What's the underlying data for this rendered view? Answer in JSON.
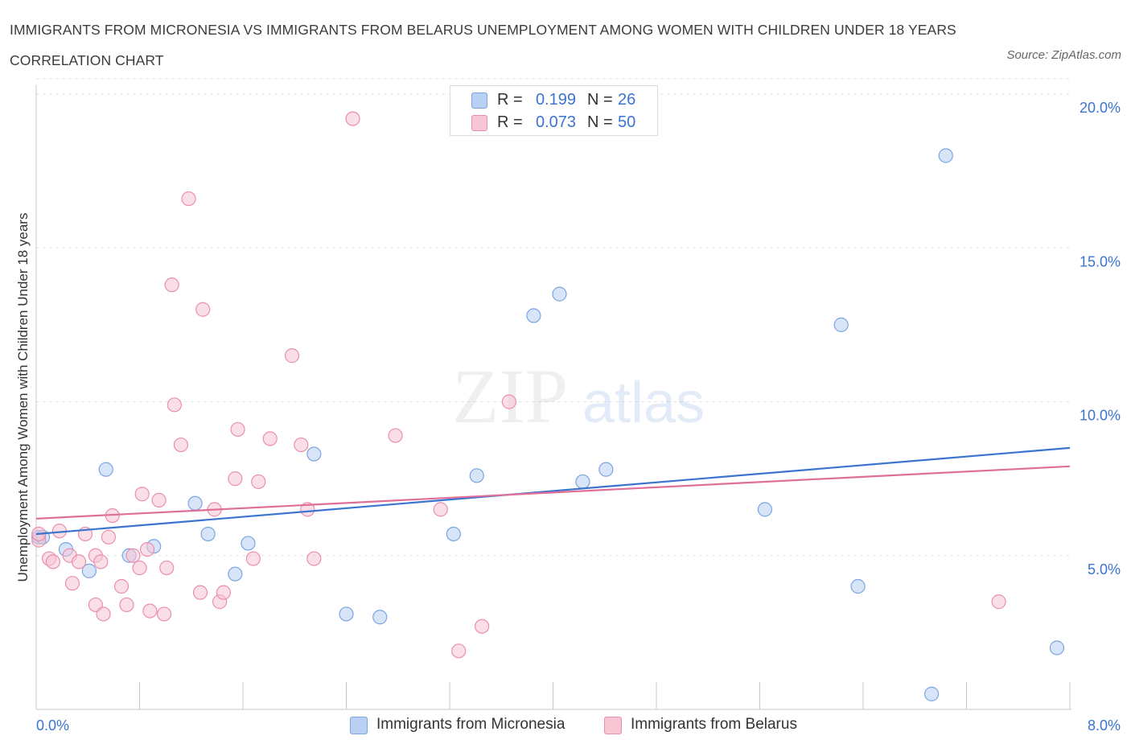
{
  "title": "IMMIGRANTS FROM MICRONESIA VS IMMIGRANTS FROM BELARUS UNEMPLOYMENT AMONG WOMEN WITH CHILDREN UNDER 18 YEARS CORRELATION CHART",
  "source": "Source: ZipAtlas.com",
  "watermark": {
    "zip": "ZIP",
    "atlas": "atlas"
  },
  "legend_top": {
    "r_label": "R =",
    "n_label": "N =",
    "rows": [
      {
        "r": "0.199",
        "n": "26"
      },
      {
        "r": "0.073",
        "n": "50"
      }
    ]
  },
  "colors": {
    "micronesia_fill": "#b8d0f4",
    "micronesia_stroke": "#7ba4e0",
    "micronesia_line": "#3a74d0",
    "belarus_fill": "#f7c5d4",
    "belarus_stroke": "#e98fae",
    "belarus_line": "#e06f98",
    "tick_label": "#3b74d1"
  },
  "chart_data": {
    "type": "scatter",
    "title": "IMMIGRANTS FROM MICRONESIA VS IMMIGRANTS FROM BELARUS UNEMPLOYMENT AMONG WOMEN WITH CHILDREN UNDER 18 YEARS CORRELATION CHART",
    "xlabel": "",
    "ylabel": "Unemployment Among Women with Children Under 18 years",
    "xlim": [
      0,
      8
    ],
    "ylim": [
      0,
      20.5
    ],
    "x_tick_labels": [
      "0.0%",
      "8.0%"
    ],
    "y_ticks": [
      5,
      10,
      15,
      20
    ],
    "y_tick_labels": [
      "5.0%",
      "10.0%",
      "15.0%",
      "20.0%"
    ],
    "grid": true,
    "legend_position": "bottom",
    "series": [
      {
        "name": "Immigrants from Micronesia",
        "trend": {
          "x": [
            0,
            8
          ],
          "y": [
            5.7,
            8.5
          ]
        },
        "points": [
          [
            0.02,
            5.6
          ],
          [
            0.23,
            5.2
          ],
          [
            0.41,
            4.5
          ],
          [
            0.54,
            7.8
          ],
          [
            0.72,
            5.0
          ],
          [
            0.91,
            5.3
          ],
          [
            1.23,
            6.7
          ],
          [
            1.33,
            5.7
          ],
          [
            1.54,
            4.4
          ],
          [
            1.64,
            5.4
          ],
          [
            2.15,
            8.3
          ],
          [
            2.4,
            3.1
          ],
          [
            2.66,
            3.0
          ],
          [
            3.23,
            5.7
          ],
          [
            3.41,
            7.6
          ],
          [
            3.85,
            12.8
          ],
          [
            4.05,
            13.5
          ],
          [
            4.23,
            7.4
          ],
          [
            4.41,
            7.8
          ],
          [
            5.64,
            6.5
          ],
          [
            6.23,
            12.5
          ],
          [
            6.36,
            4.0
          ],
          [
            6.93,
            0.5
          ],
          [
            7.04,
            18.0
          ],
          [
            7.9,
            2.0
          ],
          [
            0.05,
            5.6
          ]
        ]
      },
      {
        "name": "Immigrants from Belarus",
        "trend": {
          "x": [
            0,
            8
          ],
          "y": [
            6.2,
            7.9
          ]
        },
        "points": [
          [
            0.02,
            5.5
          ],
          [
            0.1,
            4.9
          ],
          [
            0.13,
            4.8
          ],
          [
            0.18,
            5.8
          ],
          [
            0.26,
            5.0
          ],
          [
            0.28,
            4.1
          ],
          [
            0.33,
            4.8
          ],
          [
            0.38,
            5.7
          ],
          [
            0.46,
            5.0
          ],
          [
            0.46,
            3.4
          ],
          [
            0.52,
            3.1
          ],
          [
            0.56,
            5.6
          ],
          [
            0.59,
            6.3
          ],
          [
            0.66,
            4.0
          ],
          [
            0.7,
            3.4
          ],
          [
            0.75,
            5.0
          ],
          [
            0.8,
            4.6
          ],
          [
            0.86,
            5.2
          ],
          [
            0.82,
            7.0
          ],
          [
            0.88,
            3.2
          ],
          [
            0.95,
            6.8
          ],
          [
            0.99,
            3.1
          ],
          [
            1.01,
            4.6
          ],
          [
            1.07,
            9.9
          ],
          [
            1.05,
            13.8
          ],
          [
            1.12,
            8.6
          ],
          [
            1.18,
            16.6
          ],
          [
            1.27,
            3.8
          ],
          [
            1.29,
            13.0
          ],
          [
            1.38,
            6.5
          ],
          [
            1.42,
            3.5
          ],
          [
            1.45,
            3.8
          ],
          [
            1.54,
            7.5
          ],
          [
            1.56,
            9.1
          ],
          [
            1.68,
            4.9
          ],
          [
            1.72,
            7.4
          ],
          [
            1.81,
            8.8
          ],
          [
            1.98,
            11.5
          ],
          [
            2.05,
            8.6
          ],
          [
            2.1,
            6.5
          ],
          [
            2.15,
            4.9
          ],
          [
            2.45,
            19.2
          ],
          [
            2.78,
            8.9
          ],
          [
            3.13,
            6.5
          ],
          [
            3.27,
            1.9
          ],
          [
            3.45,
            2.7
          ],
          [
            3.66,
            10.0
          ],
          [
            7.45,
            3.5
          ],
          [
            0.02,
            5.7
          ],
          [
            0.5,
            4.8
          ]
        ]
      }
    ]
  },
  "legend_bottom": [
    {
      "label": "Immigrants from Micronesia"
    },
    {
      "label": "Immigrants from Belarus"
    }
  ]
}
